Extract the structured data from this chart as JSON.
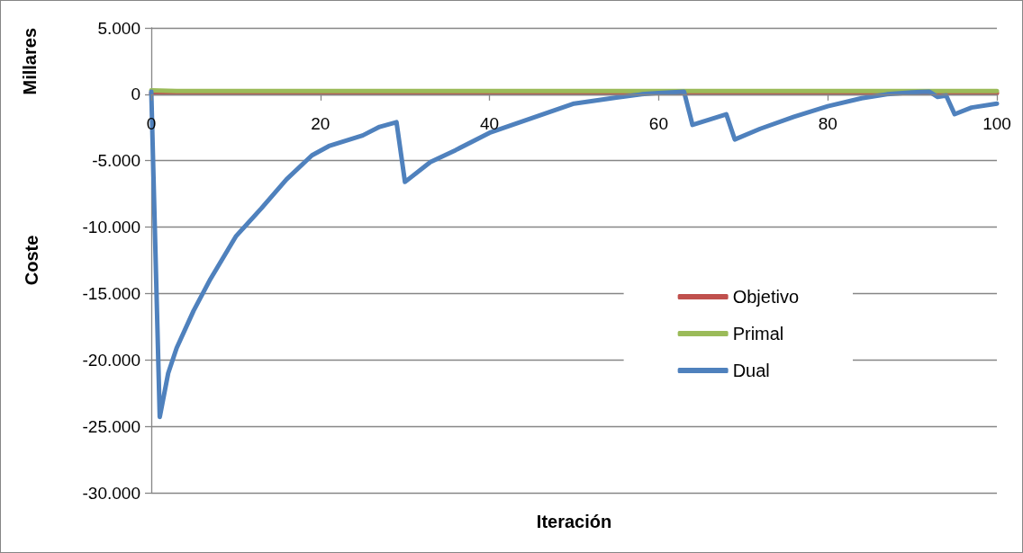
{
  "chart_data": {
    "type": "line",
    "xlabel": "Iteración",
    "ylabel": "Coste",
    "annotations": [
      "Millares"
    ],
    "xlim": [
      0,
      100
    ],
    "xticks": [
      0,
      20,
      40,
      60,
      80,
      100
    ],
    "ylim": [
      -30000,
      5000
    ],
    "yticks": [
      {
        "value": -30000,
        "label": "-30.000"
      },
      {
        "value": -25000,
        "label": "-25.000"
      },
      {
        "value": -20000,
        "label": "-20.000"
      },
      {
        "value": -15000,
        "label": "-15.000"
      },
      {
        "value": -10000,
        "label": "-10.000"
      },
      {
        "value": -5000,
        "label": "-5.000"
      },
      0,
      {
        "value": 5000,
        "label": "5.000"
      }
    ],
    "grid": "y",
    "legend": "right",
    "marker": "none",
    "line_style": "solid",
    "series": [
      {
        "name": "Objetivo",
        "color": "#c0504d",
        "x": [
          0,
          100
        ],
        "values": [
          100,
          100
        ]
      },
      {
        "name": "Primal",
        "color": "#9bbb59",
        "x": [
          0,
          3,
          100
        ],
        "values": [
          300,
          250,
          250
        ]
      },
      {
        "name": "Dual",
        "color": "#4f81bd",
        "x": [
          0,
          1,
          2,
          3,
          5,
          7,
          10,
          13,
          16,
          19,
          21,
          25,
          27,
          29,
          30,
          33,
          36,
          40,
          45,
          50,
          55,
          58,
          60,
          63,
          64,
          68,
          69,
          72,
          76,
          80,
          84,
          87,
          90,
          92,
          93,
          94,
          95,
          97,
          100
        ],
        "values": [
          200,
          -24300,
          -21000,
          -19100,
          -16300,
          -13900,
          -10700,
          -8600,
          -6400,
          -4600,
          -3900,
          -3100,
          -2450,
          -2100,
          -6600,
          -5100,
          -4200,
          -2900,
          -1800,
          -700,
          -250,
          0,
          100,
          200,
          -2300,
          -1500,
          -3400,
          -2600,
          -1700,
          -900,
          -300,
          0,
          150,
          200,
          -200,
          -100,
          -1500,
          -1000,
          -700
        ]
      }
    ]
  }
}
